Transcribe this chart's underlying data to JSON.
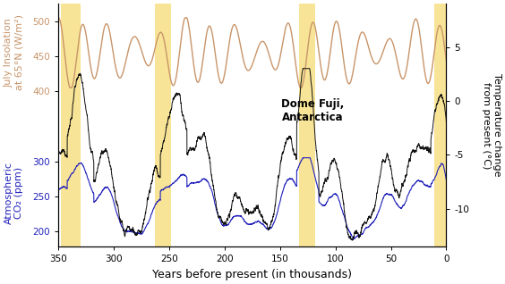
{
  "xlabel": "Years before present (in thousands)",
  "ylabel_left1": "July Insolation\nat 65°N (W/m²)",
  "ylabel_left2": "Atmospheric\nCO₂ (ppm)",
  "ylabel_right": "Temperature change\nfrom present (°C)",
  "annotation": "Dome Fuji,\nAntarctica",
  "insolation_color": "#c8956a",
  "temperature_color": "#111111",
  "co2_color": "#2222bb",
  "highlight_color": "#f5d660",
  "highlight_alpha": 0.65,
  "highlight_bands": [
    [
      330,
      348
    ],
    [
      248,
      263
    ],
    [
      118,
      133
    ],
    [
      0,
      11
    ]
  ],
  "xlim": [
    350,
    0
  ],
  "ylim_left": [
    178,
    525
  ],
  "ylim_right": [
    -13.5,
    9
  ],
  "right_yticks": [
    -10,
    -5,
    0,
    5
  ],
  "right_ytick_labels": [
    "-10",
    "-5",
    "0",
    "5"
  ],
  "xticks": [
    350,
    300,
    250,
    200,
    150,
    100,
    50,
    0
  ],
  "xlabel_fontsize": 9,
  "ylabel_fontsize": 8,
  "tick_fontsize": 7.5,
  "annotation_fontsize": 8.5,
  "bg_color": "#ffffff"
}
